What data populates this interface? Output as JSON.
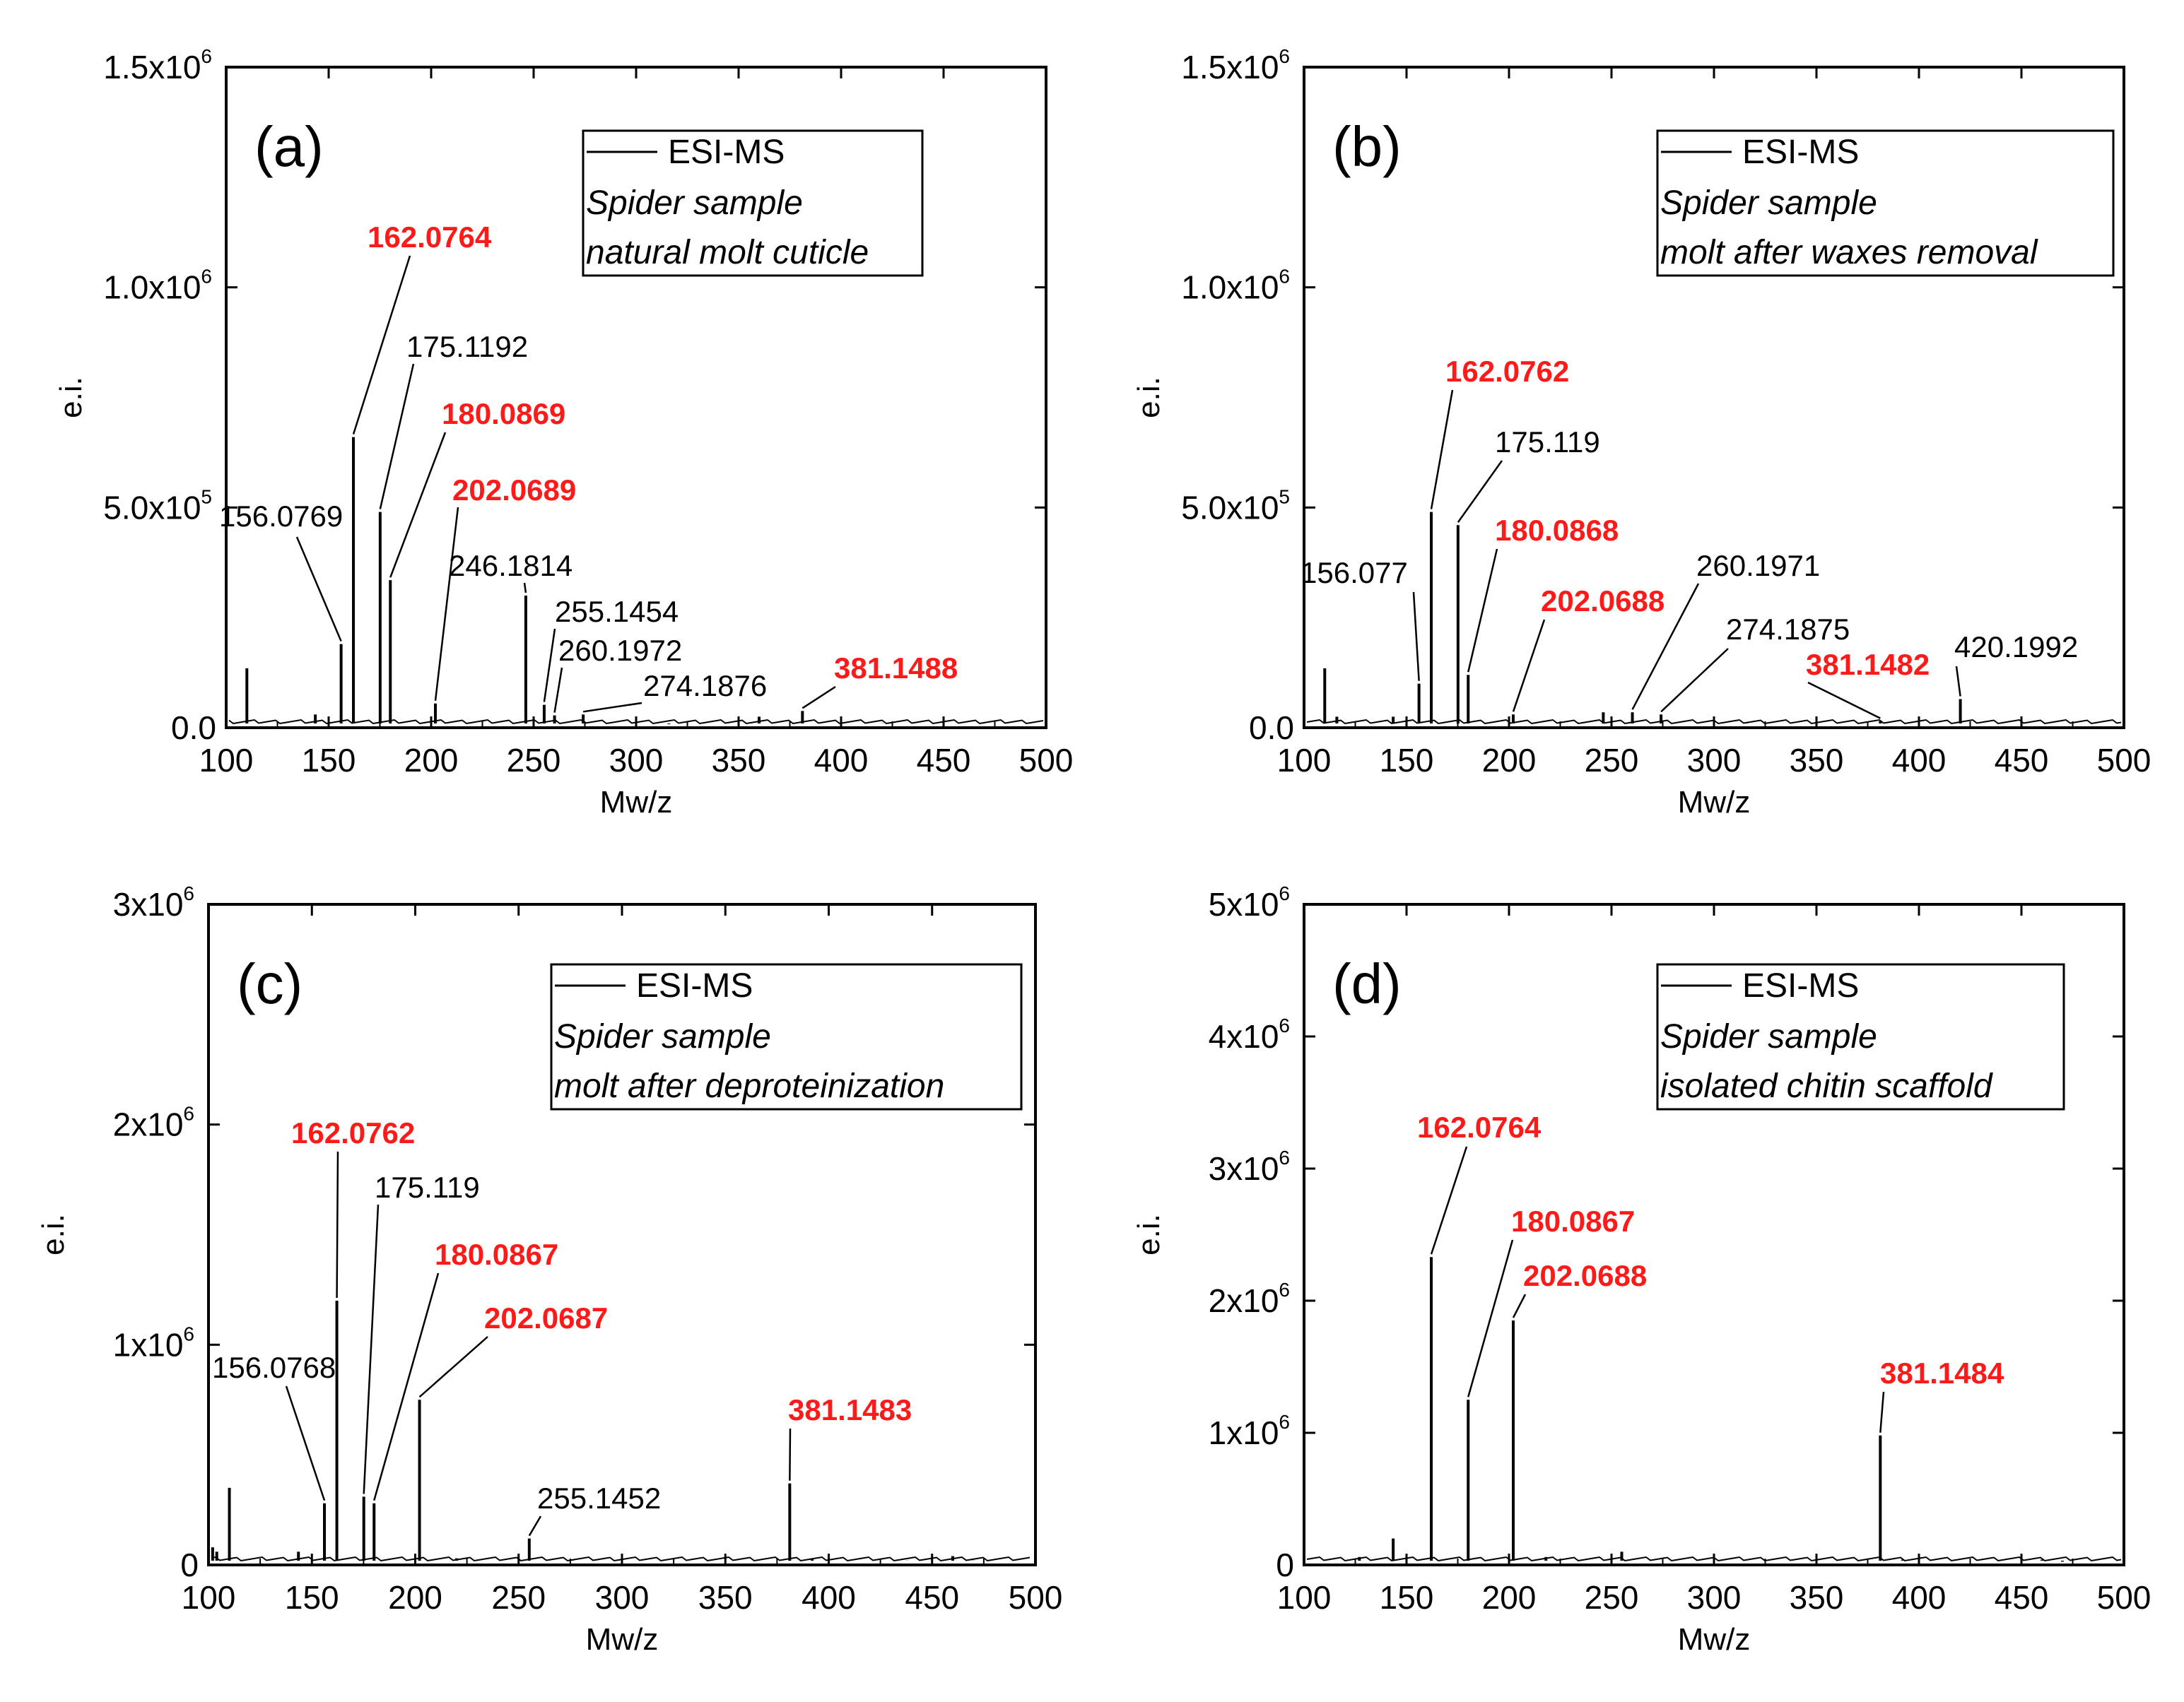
{
  "chart_data": [
    {
      "type": "line",
      "panel_label": "(a)",
      "xlabel": "Mw/z",
      "ylabel": "e.i.",
      "xlim": [
        100,
        500
      ],
      "ylim": [
        0,
        1500000
      ],
      "x_ticks": [
        100,
        150,
        200,
        250,
        300,
        350,
        400,
        450,
        500
      ],
      "x_tick_labels": [
        "100",
        "150",
        "200",
        "250",
        "300",
        "350",
        "400",
        "450",
        "500"
      ],
      "y_ticks": [
        0,
        500000,
        1000000,
        1500000
      ],
      "y_tick_labels": [
        {
          "mant": "0.0",
          "exp": ""
        },
        {
          "mant": "5.0x10",
          "exp": "5"
        },
        {
          "mant": "1.0x10",
          "exp": "6"
        },
        {
          "mant": "1.5x10",
          "exp": "6"
        }
      ],
      "legend": {
        "series": "ESI-MS",
        "line1": "Spider sample",
        "line2": "natural molt cuticle"
      },
      "peaks": [
        {
          "x": 110.1,
          "y": 135000
        },
        {
          "x": 143.5,
          "y": 30000
        },
        {
          "x": 156.0769,
          "y": 190000
        },
        {
          "x": 162.0764,
          "y": 660000
        },
        {
          "x": 175.1192,
          "y": 490000
        },
        {
          "x": 180.0869,
          "y": 335000
        },
        {
          "x": 202.0689,
          "y": 55000
        },
        {
          "x": 246.1814,
          "y": 300000
        },
        {
          "x": 255.1454,
          "y": 52000
        },
        {
          "x": 260.1972,
          "y": 28000
        },
        {
          "x": 274.1876,
          "y": 30000
        },
        {
          "x": 316,
          "y": 8000
        },
        {
          "x": 360,
          "y": 25000
        },
        {
          "x": 381.1488,
          "y": 38000
        },
        {
          "x": 420,
          "y": 10000
        }
      ],
      "annotations": [
        {
          "text": "162.0764",
          "x": 162.0764,
          "y": 660000,
          "color": "#ff1a1a"
        },
        {
          "text": "175.1192",
          "x": 175.1192,
          "y": 490000,
          "color": "#000000"
        },
        {
          "text": "180.0869",
          "x": 180.0869,
          "y": 335000,
          "color": "#ff1a1a"
        },
        {
          "text": "202.0689",
          "x": 202.0689,
          "y": 55000,
          "color": "#ff1a1a"
        },
        {
          "text": "156.0769",
          "x": 156.0769,
          "y": 190000,
          "color": "#000000"
        },
        {
          "text": "246.1814",
          "x": 246.1814,
          "y": 300000,
          "color": "#000000"
        },
        {
          "text": "255.1454",
          "x": 255.1454,
          "y": 52000,
          "color": "#000000"
        },
        {
          "text": "260.1972",
          "x": 260.1972,
          "y": 28000,
          "color": "#000000"
        },
        {
          "text": "274.1876",
          "x": 274.1876,
          "y": 30000,
          "color": "#000000"
        },
        {
          "text": "381.1488",
          "x": 381.1488,
          "y": 38000,
          "color": "#ff1a1a"
        }
      ]
    },
    {
      "type": "line",
      "panel_label": "(b)",
      "xlabel": "Mw/z",
      "ylabel": "e.i.",
      "xlim": [
        100,
        500
      ],
      "ylim": [
        0,
        1500000
      ],
      "x_ticks": [
        100,
        150,
        200,
        250,
        300,
        350,
        400,
        450,
        500
      ],
      "x_tick_labels": [
        "100",
        "150",
        "200",
        "250",
        "300",
        "350",
        "400",
        "450",
        "500"
      ],
      "y_ticks": [
        0,
        500000,
        1000000,
        1500000
      ],
      "y_tick_labels": [
        {
          "mant": "0.0",
          "exp": ""
        },
        {
          "mant": "5.0x10",
          "exp": "5"
        },
        {
          "mant": "1.0x10",
          "exp": "6"
        },
        {
          "mant": "1.5x10",
          "exp": "6"
        }
      ],
      "legend": {
        "series": "ESI-MS",
        "line1": "Spider sample",
        "line2": "molt after waxes removal"
      },
      "peaks": [
        {
          "x": 110.1,
          "y": 135000
        },
        {
          "x": 116,
          "y": 25000
        },
        {
          "x": 143.5,
          "y": 25000
        },
        {
          "x": 156.077,
          "y": 100000
        },
        {
          "x": 162.0762,
          "y": 490000
        },
        {
          "x": 175.119,
          "y": 460000
        },
        {
          "x": 180.0868,
          "y": 120000
        },
        {
          "x": 202.0688,
          "y": 30000
        },
        {
          "x": 246,
          "y": 35000
        },
        {
          "x": 260.1971,
          "y": 35000
        },
        {
          "x": 274.1875,
          "y": 30000
        },
        {
          "x": 316,
          "y": 10000
        },
        {
          "x": 381.1482,
          "y": 15000
        },
        {
          "x": 420.1992,
          "y": 65000
        }
      ],
      "annotations": [
        {
          "text": "162.0762",
          "x": 162.0762,
          "y": 490000,
          "color": "#ff1a1a"
        },
        {
          "text": "175.119",
          "x": 175.119,
          "y": 460000,
          "color": "#000000"
        },
        {
          "text": "180.0868",
          "x": 180.0868,
          "y": 120000,
          "color": "#ff1a1a"
        },
        {
          "text": "156.077",
          "x": 156.077,
          "y": 100000,
          "color": "#000000"
        },
        {
          "text": "202.0688",
          "x": 202.0688,
          "y": 30000,
          "color": "#ff1a1a"
        },
        {
          "text": "260.1971",
          "x": 260.1971,
          "y": 35000,
          "color": "#000000"
        },
        {
          "text": "274.1875",
          "x": 274.1875,
          "y": 30000,
          "color": "#000000"
        },
        {
          "text": "381.1482",
          "x": 381.1482,
          "y": 15000,
          "color": "#ff1a1a"
        },
        {
          "text": "420.1992",
          "x": 420.1992,
          "y": 65000,
          "color": "#000000"
        }
      ]
    },
    {
      "type": "line",
      "panel_label": "(c)",
      "xlabel": "Mw/z",
      "ylabel": "e.i.",
      "xlim": [
        100,
        500
      ],
      "ylim": [
        0,
        3000000
      ],
      "x_ticks": [
        100,
        150,
        200,
        250,
        300,
        350,
        400,
        450,
        500
      ],
      "x_tick_labels": [
        "100",
        "150",
        "200",
        "250",
        "300",
        "350",
        "400",
        "450",
        "500"
      ],
      "y_ticks": [
        0,
        1000000,
        2000000,
        3000000
      ],
      "y_tick_labels": [
        {
          "mant": "0",
          "exp": ""
        },
        {
          "mant": "1x10",
          "exp": "6"
        },
        {
          "mant": "2x10",
          "exp": "6"
        },
        {
          "mant": "3x10",
          "exp": "6"
        }
      ],
      "legend": {
        "series": "ESI-MS",
        "line1": "Spider sample",
        "line2": "molt after deproteinization"
      },
      "peaks": [
        {
          "x": 102,
          "y": 80000
        },
        {
          "x": 104,
          "y": 60000
        },
        {
          "x": 110.1,
          "y": 350000
        },
        {
          "x": 143.5,
          "y": 60000
        },
        {
          "x": 156.0768,
          "y": 280000
        },
        {
          "x": 162.0762,
          "y": 1200000
        },
        {
          "x": 175.119,
          "y": 310000
        },
        {
          "x": 180.0867,
          "y": 280000
        },
        {
          "x": 202.0687,
          "y": 750000
        },
        {
          "x": 220,
          "y": 30000
        },
        {
          "x": 255.1452,
          "y": 120000
        },
        {
          "x": 276,
          "y": 20000
        },
        {
          "x": 342,
          "y": 20000
        },
        {
          "x": 381.1483,
          "y": 370000
        },
        {
          "x": 392,
          "y": 30000
        },
        {
          "x": 438,
          "y": 20000
        },
        {
          "x": 460,
          "y": 40000
        },
        {
          "x": 470,
          "y": 20000
        }
      ],
      "annotations": [
        {
          "text": "162.0762",
          "x": 162.0762,
          "y": 1200000,
          "color": "#ff1a1a"
        },
        {
          "text": "175.119",
          "x": 175.119,
          "y": 310000,
          "color": "#000000"
        },
        {
          "text": "180.0867",
          "x": 180.0867,
          "y": 280000,
          "color": "#ff1a1a"
        },
        {
          "text": "202.0687",
          "x": 202.0687,
          "y": 750000,
          "color": "#ff1a1a"
        },
        {
          "text": "156.0768",
          "x": 156.0768,
          "y": 280000,
          "color": "#000000"
        },
        {
          "text": "255.1452",
          "x": 255.1452,
          "y": 120000,
          "color": "#000000"
        },
        {
          "text": "381.1483",
          "x": 381.1483,
          "y": 370000,
          "color": "#ff1a1a"
        }
      ]
    },
    {
      "type": "line",
      "panel_label": "(d)",
      "xlabel": "Mw/z",
      "ylabel": "e.i.",
      "xlim": [
        100,
        500
      ],
      "ylim": [
        0,
        5000000
      ],
      "x_ticks": [
        100,
        150,
        200,
        250,
        300,
        350,
        400,
        450,
        500
      ],
      "x_tick_labels": [
        "100",
        "150",
        "200",
        "250",
        "300",
        "350",
        "400",
        "450",
        "500"
      ],
      "y_ticks": [
        0,
        1000000,
        2000000,
        3000000,
        4000000,
        5000000
      ],
      "y_tick_labels": [
        {
          "mant": "0",
          "exp": ""
        },
        {
          "mant": "1x10",
          "exp": "6"
        },
        {
          "mant": "2x10",
          "exp": "6"
        },
        {
          "mant": "3x10",
          "exp": "6"
        },
        {
          "mant": "4x10",
          "exp": "6"
        },
        {
          "mant": "5x10",
          "exp": "6"
        }
      ],
      "legend": {
        "series": "ESI-MS",
        "line1": "Spider sample",
        "line2": "isolated chitin scaffold"
      },
      "peaks": [
        {
          "x": 110,
          "y": 40000
        },
        {
          "x": 127,
          "y": 60000
        },
        {
          "x": 143.5,
          "y": 200000
        },
        {
          "x": 162.0764,
          "y": 2330000
        },
        {
          "x": 180.0867,
          "y": 1250000
        },
        {
          "x": 202.0688,
          "y": 1850000
        },
        {
          "x": 218,
          "y": 60000
        },
        {
          "x": 255,
          "y": 100000
        },
        {
          "x": 381.1484,
          "y": 980000
        },
        {
          "x": 392,
          "y": 40000
        },
        {
          "x": 460,
          "y": 40000
        },
        {
          "x": 470,
          "y": 25000
        }
      ],
      "annotations": [
        {
          "text": "162.0764",
          "x": 162.0764,
          "y": 2330000,
          "color": "#ff1a1a"
        },
        {
          "text": "180.0867",
          "x": 180.0867,
          "y": 1250000,
          "color": "#ff1a1a"
        },
        {
          "text": "202.0688",
          "x": 202.0688,
          "y": 1850000,
          "color": "#ff1a1a"
        },
        {
          "text": "381.1484",
          "x": 381.1484,
          "y": 980000,
          "color": "#ff1a1a"
        }
      ]
    }
  ]
}
